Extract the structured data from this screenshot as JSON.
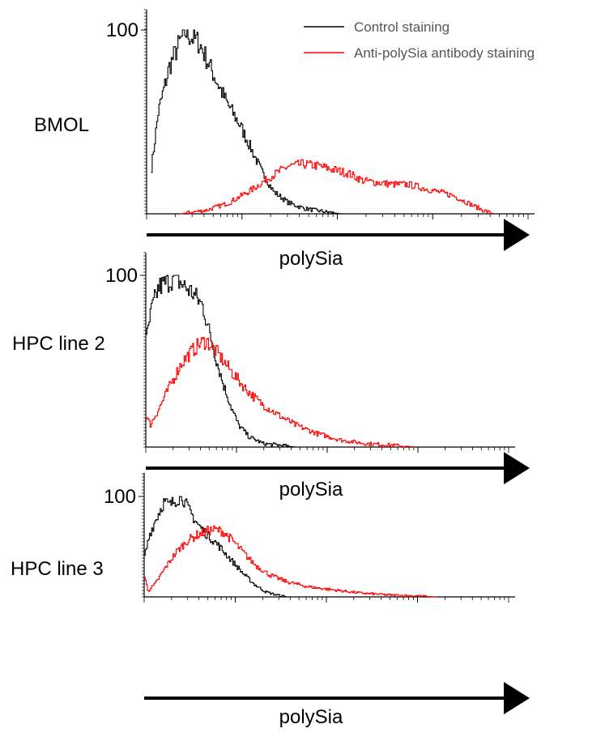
{
  "legend": {
    "control": {
      "label": "Control staining",
      "color": "#000000"
    },
    "anti": {
      "label": "Anti-polySia antibody staining",
      "color": "#ff0000"
    }
  },
  "chart_data": [
    {
      "type": "line",
      "panel_label": "BMOL",
      "ytick": "100",
      "xlabel": "polySia",
      "ylim": [
        0,
        100
      ],
      "xlim": [
        0,
        1023
      ],
      "x_scale": "log",
      "grid": false,
      "series": [
        {
          "name": "Control staining",
          "color": "#000000",
          "x": [
            12,
            30,
            60,
            100,
            140,
            180,
            215,
            250,
            280,
            310,
            340,
            380,
            420,
            480,
            520
          ],
          "values": [
            25,
            55,
            80,
            99,
            93,
            75,
            60,
            48,
            35,
            22,
            12,
            6,
            3,
            1,
            0
          ]
        },
        {
          "name": "Anti-polySia antibody staining",
          "color": "#ff0000",
          "x": [
            90,
            160,
            220,
            280,
            330,
            380,
            420,
            460,
            500,
            540,
            580,
            620,
            660,
            700,
            740,
            780,
            820,
            860,
            900,
            930
          ],
          "values": [
            0,
            2,
            6,
            13,
            20,
            26,
            27,
            26,
            24,
            22,
            18,
            17,
            16,
            16,
            14,
            12,
            10,
            6,
            2,
            0
          ]
        }
      ]
    },
    {
      "type": "line",
      "panel_label": "HPC line 2",
      "ytick": "100",
      "xlabel": "polySia",
      "ylim": [
        0,
        100
      ],
      "xlim": [
        0,
        1023
      ],
      "x_scale": "log",
      "grid": false,
      "series": [
        {
          "name": "Control staining",
          "color": "#000000",
          "x": [
            0,
            15,
            35,
            60,
            80,
            105,
            130,
            160,
            190,
            215,
            240,
            260,
            290,
            330,
            380,
            420
          ],
          "values": [
            62,
            80,
            93,
            96,
            99,
            94,
            90,
            82,
            57,
            38,
            23,
            13,
            6,
            2,
            1,
            0
          ]
        },
        {
          "name": "Anti-polySia antibody staining",
          "color": "#ff0000",
          "x": [
            0,
            12,
            40,
            70,
            100,
            125,
            150,
            170,
            200,
            240,
            280,
            320,
            370,
            420,
            480,
            550,
            620,
            700,
            760
          ],
          "values": [
            18,
            13,
            24,
            37,
            49,
            55,
            60,
            62,
            55,
            44,
            34,
            26,
            19,
            13,
            8,
            4,
            2,
            1,
            0
          ]
        }
      ]
    },
    {
      "type": "line",
      "panel_label": "HPC line 3",
      "ytick": "100",
      "xlabel": "polySia",
      "ylim": [
        0,
        100
      ],
      "xlim": [
        0,
        1023
      ],
      "x_scale": "log",
      "grid": false,
      "series": [
        {
          "name": "Control staining",
          "color": "#000000",
          "x": [
            0,
            15,
            35,
            55,
            70,
            85,
            105,
            125,
            150,
            175,
            200,
            220,
            250,
            280,
            310,
            340,
            370,
            400
          ],
          "values": [
            40,
            63,
            80,
            95,
            91,
            96,
            100,
            86,
            72,
            62,
            54,
            46,
            34,
            22,
            12,
            5,
            2,
            0
          ]
        },
        {
          "name": "Anti-polySia antibody staining",
          "color": "#ff0000",
          "x": [
            0,
            10,
            30,
            60,
            90,
            120,
            150,
            180,
            200,
            220,
            250,
            280,
            310,
            350,
            400,
            460,
            530,
            600,
            680,
            760,
            820
          ],
          "values": [
            20,
            6,
            13,
            30,
            45,
            56,
            62,
            66,
            67,
            65,
            55,
            43,
            32,
            22,
            15,
            10,
            7,
            4,
            2,
            1,
            0
          ]
        }
      ]
    }
  ]
}
